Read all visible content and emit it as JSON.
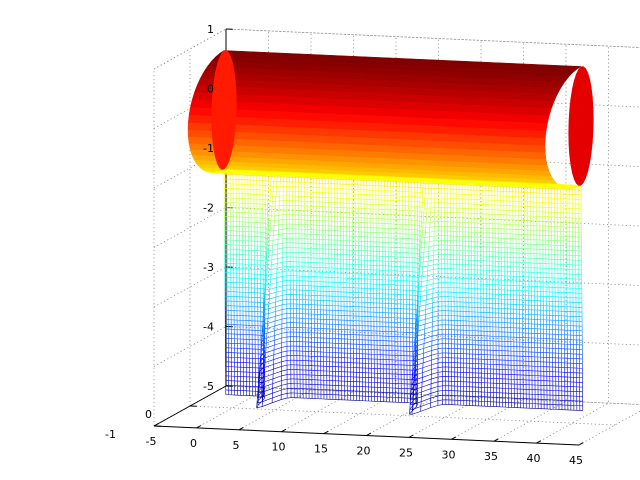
{
  "chart_data": {
    "type": "surface",
    "title": "",
    "xlabel": "",
    "ylabel": "",
    "zlabel": "",
    "grid": true,
    "view": "3d",
    "colormap": "jet",
    "xlim": [
      -5,
      45
    ],
    "ylim": [
      -1,
      1
    ],
    "zlim": [
      -5,
      1
    ],
    "xticks": [
      "-5",
      "0",
      "5",
      "10",
      "15",
      "20",
      "25",
      "30",
      "35",
      "40",
      "45"
    ],
    "yticks": [
      "-1",
      "0"
    ],
    "zticks": [
      "1",
      "0",
      "-1",
      "-2",
      "-3",
      "-4",
      "-5"
    ],
    "surfaces": [
      {
        "name": "",
        "kind": "cylinder",
        "style": "filled",
        "x_range": [
          -1,
          41
        ],
        "radius": 1,
        "z_center": 0
      },
      {
        "name": "",
        "kind": "hanging-sheet",
        "style": "mesh",
        "x_range": [
          -1,
          41
        ],
        "z_range": [
          -4.8,
          -1
        ],
        "fold_x": [
          5,
          23
        ]
      }
    ]
  }
}
